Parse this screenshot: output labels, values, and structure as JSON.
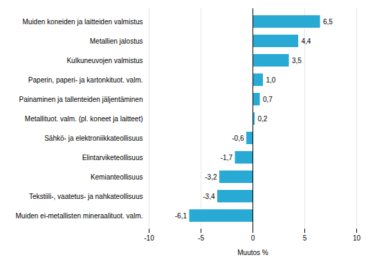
{
  "chart_data": {
    "type": "bar",
    "orientation": "horizontal",
    "categories": [
      "Muiden ei-metallisten mineraalituot. valm.",
      "Tekstiili-, vaatetus- ja nahkateollisuus",
      "Kemianteollisuus",
      "Elintarviketeollisuus",
      "Sähkö- ja elektroniikkateollisuus",
      "Metallituot. valm. (pl. koneet ja laitteet)",
      "Painaminen ja tallenteiden jäljentäminen",
      "Paperin, paperi- ja kartonkituot. valm.",
      "Kulkuneuvojen valmistus",
      "Metallien jalostus",
      "Muiden koneiden ja laitteiden valmistus"
    ],
    "values": [
      -6.1,
      -3.4,
      -3.2,
      -1.7,
      -0.6,
      0.2,
      0.7,
      1.0,
      3.5,
      4.4,
      6.5
    ],
    "value_labels": [
      "-6,1",
      "-3,4",
      "-3,2",
      "-1,7",
      "-0,6",
      "0,2",
      "0,7",
      "1,0",
      "3,5",
      "4,4",
      "6,5"
    ],
    "color": "#29aad4",
    "xlabel": "Muutos %",
    "xlim": [
      -10,
      10
    ],
    "xticks": [
      -10,
      -5,
      0,
      5,
      10
    ],
    "grid": true,
    "data_labels": true
  }
}
